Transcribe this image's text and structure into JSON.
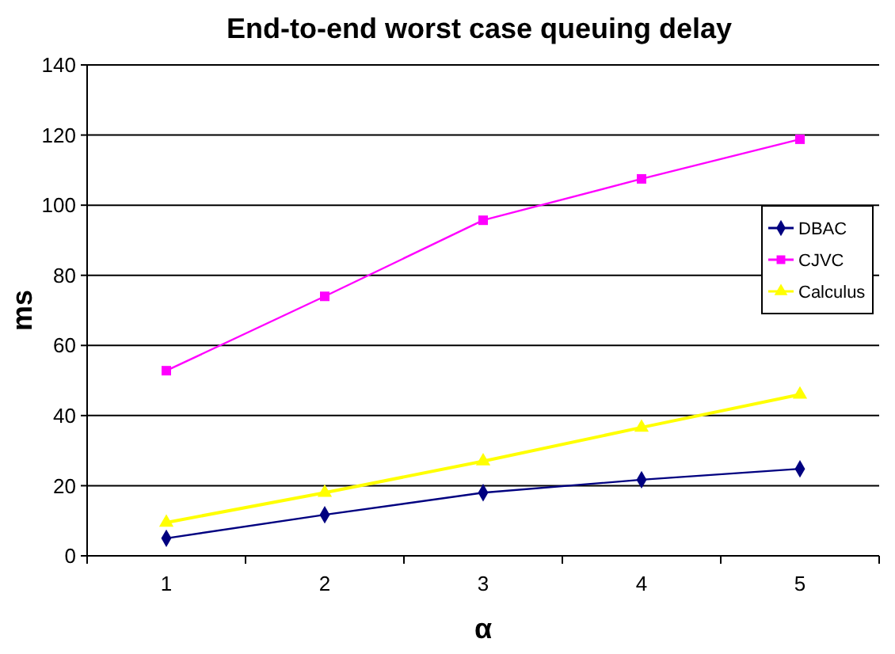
{
  "chart_data": {
    "type": "line",
    "title": "End-to-end worst case queuing delay",
    "xlabel": "α",
    "ylabel": "ms",
    "categories": [
      "1",
      "2",
      "3",
      "4",
      "5"
    ],
    "series": [
      {
        "name": "DBAC",
        "color": "#000080",
        "marker": "diamond",
        "values": [
          5,
          11.7,
          18,
          21.7,
          24.8
        ]
      },
      {
        "name": "CJVC",
        "color": "#ff00ff",
        "marker": "square",
        "values": [
          52.8,
          74,
          95.7,
          107.5,
          118.8
        ]
      },
      {
        "name": "Calculus",
        "color": "#ffff00",
        "marker": "triangle",
        "values": [
          9.5,
          18,
          27,
          36.6,
          46
        ]
      }
    ],
    "ylim": [
      0,
      140
    ],
    "yticks": [
      0,
      20,
      40,
      60,
      80,
      100,
      120,
      140
    ],
    "grid": "y",
    "legend": "right"
  }
}
